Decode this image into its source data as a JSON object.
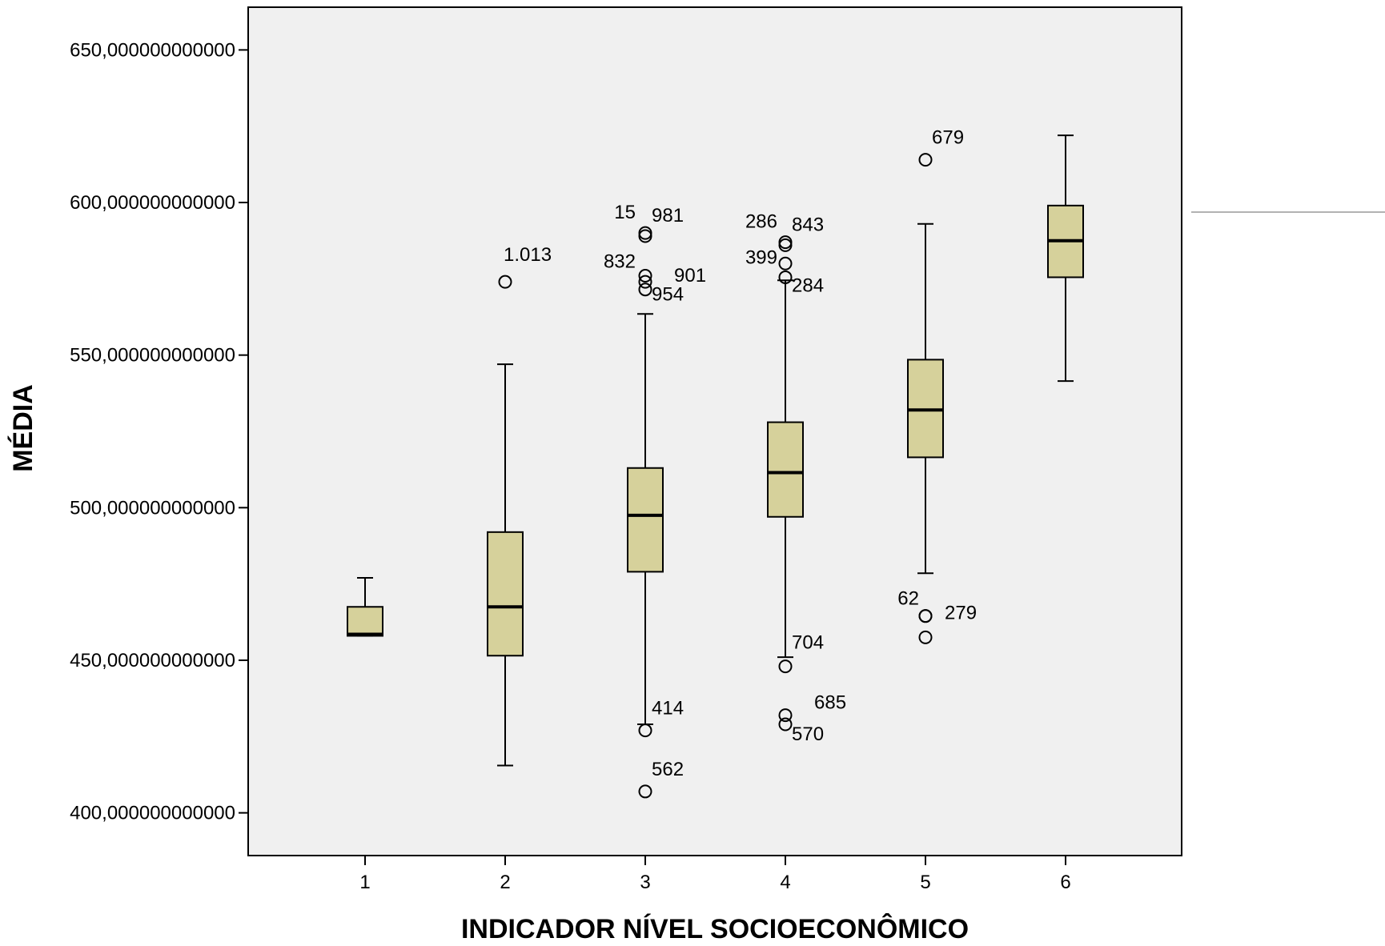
{
  "chart_data": {
    "type": "boxplot",
    "xlabel": "INDICADOR NÍVEL SOCIOECONÔMICO",
    "ylabel": "MÉDIA",
    "ylim": [
      386,
      664
    ],
    "y_ticks": [
      400,
      450,
      500,
      550,
      600,
      650
    ],
    "y_tick_labels": [
      "400,000000000000",
      "450,000000000000",
      "500,000000000000",
      "550,000000000000",
      "600,000000000000",
      "650,000000000000"
    ],
    "categories": [
      "1",
      "2",
      "3",
      "4",
      "5",
      "6"
    ],
    "colors": {
      "box_fill": "#d6d19b",
      "plot_background": "#f0f0f0",
      "stroke": "#000000"
    },
    "boxes": [
      {
        "category": "1",
        "whisker_low": 458,
        "q1": 458,
        "median": 458.5,
        "q3": 467.5,
        "whisker_high": 477,
        "outliers": []
      },
      {
        "category": "2",
        "whisker_low": 415.5,
        "q1": 451.5,
        "median": 467.5,
        "q3": 492,
        "whisker_high": 547,
        "outliers": [
          {
            "value": 574,
            "label": "1.013"
          }
        ]
      },
      {
        "category": "3",
        "whisker_low": 429,
        "q1": 479,
        "median": 497.5,
        "q3": 513,
        "whisker_high": 563.5,
        "outliers": [
          {
            "value": 590,
            "label": "15"
          },
          {
            "value": 589,
            "label": "981"
          },
          {
            "value": 576,
            "label": "832"
          },
          {
            "value": 574,
            "label": "901"
          },
          {
            "value": 571.5,
            "label": "954"
          },
          {
            "value": 427,
            "label": "414"
          },
          {
            "value": 407,
            "label": "562"
          }
        ]
      },
      {
        "category": "4",
        "whisker_low": 451,
        "q1": 497,
        "median": 511.5,
        "q3": 528,
        "whisker_high": 574.5,
        "outliers": [
          {
            "value": 587,
            "label": "286"
          },
          {
            "value": 586,
            "label": "843"
          },
          {
            "value": 580,
            "label": "399"
          },
          {
            "value": 575.5,
            "label": "284"
          },
          {
            "value": 448,
            "label": "704"
          },
          {
            "value": 432,
            "label": "685"
          },
          {
            "value": 429,
            "label": "570"
          }
        ]
      },
      {
        "category": "5",
        "whisker_low": 478.5,
        "q1": 516.5,
        "median": 532,
        "q3": 548.5,
        "whisker_high": 593,
        "outliers": [
          {
            "value": 614,
            "label": "679"
          },
          {
            "value": 464.5,
            "label": "62"
          },
          {
            "value": 464.5,
            "label": "279"
          },
          {
            "value": 457.5,
            "label": ""
          }
        ]
      },
      {
        "category": "6",
        "whisker_low": 541.5,
        "q1": 575.5,
        "median": 587.5,
        "q3": 599,
        "whisker_high": 622,
        "outliers": []
      }
    ]
  }
}
